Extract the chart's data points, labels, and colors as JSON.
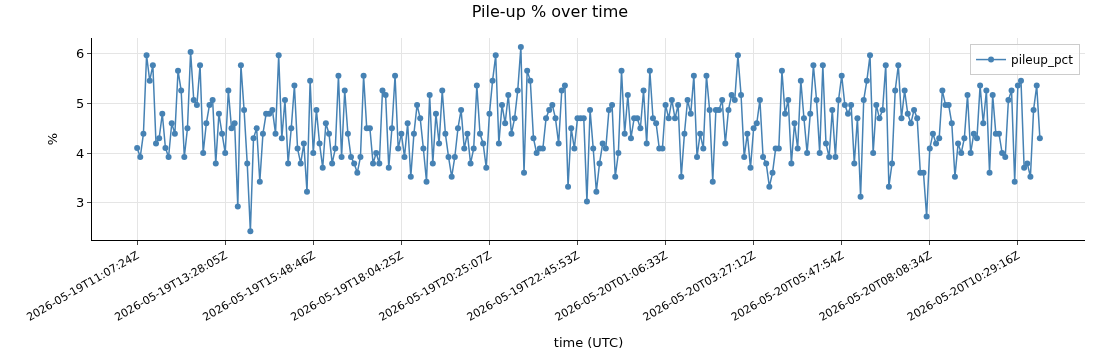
{
  "chart_data": {
    "type": "line",
    "title": "Pile-up % over time",
    "xlabel": "time (UTC)",
    "ylabel": "%",
    "categories": [
      "2026-05-19T11:07:24Z",
      null,
      null,
      null,
      null,
      null,
      null,
      null,
      null,
      null,
      null,
      null,
      null,
      null,
      null,
      null,
      null,
      null,
      null,
      null,
      null,
      null,
      null,
      null,
      null,
      null,
      null,
      null,
      "2026-05-19T13:28:05Z",
      null,
      null,
      null,
      null,
      null,
      null,
      null,
      null,
      null,
      null,
      null,
      null,
      null,
      null,
      null,
      null,
      null,
      null,
      null,
      null,
      null,
      null,
      null,
      null,
      null,
      null,
      null,
      "2026-05-19T15:48:46Z",
      null,
      null,
      null,
      null,
      null,
      null,
      null,
      null,
      null,
      null,
      null,
      null,
      null,
      null,
      null,
      null,
      null,
      null,
      null,
      null,
      null,
      null,
      null,
      null,
      null,
      null,
      null,
      "2026-05-19T18:04:25Z",
      null,
      null,
      null,
      null,
      null,
      null,
      null,
      null,
      null,
      null,
      null,
      null,
      null,
      null,
      null,
      null,
      null,
      null,
      null,
      null,
      null,
      null,
      null,
      null,
      null,
      null,
      null,
      "2026-05-19T20:25:07Z",
      null,
      null,
      null,
      null,
      null,
      null,
      null,
      null,
      null,
      null,
      null,
      null,
      null,
      null,
      null,
      null,
      null,
      null,
      null,
      null,
      null,
      null,
      null,
      null,
      null,
      null,
      null,
      "2026-05-19T22:45:53Z",
      null,
      null,
      null,
      null,
      null,
      null,
      null,
      null,
      null,
      null,
      null,
      null,
      null,
      null,
      null,
      null,
      null,
      null,
      null,
      null,
      null,
      null,
      null,
      null,
      null,
      null,
      null,
      "2026-05-20T01:06:33Z",
      null,
      null,
      null,
      null,
      null,
      null,
      null,
      null,
      null,
      null,
      null,
      null,
      null,
      null,
      null,
      null,
      null,
      null,
      null,
      null,
      null,
      null,
      null,
      null,
      null,
      null,
      null,
      "2026-05-20T03:27:12Z",
      null,
      null,
      null,
      null,
      null,
      null,
      null,
      null,
      null,
      null,
      null,
      null,
      null,
      null,
      null,
      null,
      null,
      null,
      null,
      null,
      null,
      null,
      null,
      null,
      null,
      null,
      null,
      "2026-05-20T05:47:54Z",
      null,
      null,
      null,
      null,
      null,
      null,
      null,
      null,
      null,
      null,
      null,
      null,
      null,
      null,
      null,
      null,
      null,
      null,
      null,
      null,
      null,
      null,
      null,
      null,
      null,
      null,
      null,
      "2026-05-20T08:08:34Z",
      null,
      null,
      null,
      null,
      null,
      null,
      null,
      null,
      null,
      null,
      null,
      null,
      null,
      null,
      null,
      null,
      null,
      null,
      null,
      null,
      null,
      null,
      null,
      null,
      null,
      null,
      null,
      "2026-05-20T10:29:16Z",
      null,
      null,
      null,
      null,
      null,
      null,
      null
    ],
    "series": [
      {
        "name": "pileup_pct",
        "color": "#4682b4",
        "values": [
          4.1,
          3.92,
          4.39,
          5.97,
          5.46,
          5.77,
          4.19,
          4.3,
          4.79,
          4.1,
          3.92,
          4.6,
          4.39,
          5.66,
          5.26,
          3.92,
          4.5,
          6.04,
          5.07,
          4.97,
          5.77,
          4.0,
          4.6,
          4.97,
          5.07,
          3.79,
          4.79,
          4.39,
          4.0,
          5.26,
          4.5,
          4.6,
          2.92,
          5.77,
          4.87,
          3.79,
          2.42,
          4.3,
          4.5,
          3.42,
          4.39,
          4.79,
          4.79,
          4.87,
          4.39,
          5.97,
          4.3,
          5.07,
          3.79,
          4.5,
          5.36,
          4.09,
          3.79,
          4.19,
          3.22,
          5.46,
          4.0,
          4.87,
          4.19,
          3.7,
          4.6,
          4.39,
          3.79,
          4.09,
          5.56,
          3.92,
          5.26,
          4.39,
          3.92,
          3.79,
          3.6,
          3.92,
          5.56,
          4.5,
          4.5,
          3.79,
          4.0,
          3.79,
          5.26,
          5.17,
          3.7,
          4.5,
          5.56,
          4.09,
          4.39,
          3.92,
          4.6,
          3.52,
          4.39,
          4.97,
          4.7,
          4.09,
          3.42,
          5.17,
          3.79,
          4.79,
          4.19,
          5.26,
          4.39,
          3.92,
          3.52,
          3.92,
          4.5,
          4.87,
          4.09,
          4.39,
          3.79,
          4.09,
          5.36,
          4.39,
          4.19,
          3.7,
          4.79,
          5.46,
          5.97,
          4.19,
          4.97,
          4.6,
          5.17,
          4.39,
          4.7,
          5.26,
          6.14,
          3.6,
          5.66,
          5.46,
          4.3,
          4.0,
          4.09,
          4.09,
          4.7,
          4.87,
          4.97,
          4.7,
          4.19,
          5.26,
          5.36,
          3.32,
          4.5,
          4.09,
          4.7,
          4.7,
          4.7,
          3.02,
          4.87,
          4.09,
          3.22,
          3.79,
          4.19,
          4.09,
          4.87,
          4.97,
          3.52,
          4.0,
          5.66,
          4.39,
          5.17,
          4.3,
          4.7,
          4.7,
          4.5,
          5.26,
          4.19,
          5.66,
          4.7,
          4.6,
          4.09,
          4.09,
          4.97,
          4.7,
          5.07,
          4.7,
          4.97,
          3.52,
          4.39,
          5.07,
          4.79,
          5.56,
          3.92,
          4.39,
          4.09,
          5.56,
          4.87,
          3.42,
          4.87,
          4.87,
          5.07,
          4.19,
          4.87,
          5.17,
          5.07,
          5.97,
          5.17,
          3.92,
          4.39,
          3.7,
          4.5,
          4.6,
          5.07,
          3.92,
          3.79,
          3.32,
          3.6,
          4.09,
          4.09,
          5.66,
          4.79,
          5.07,
          3.79,
          4.6,
          4.09,
          5.46,
          4.7,
          4.0,
          4.79,
          5.77,
          5.07,
          4.0,
          5.77,
          4.19,
          3.92,
          4.87,
          3.92,
          5.07,
          5.56,
          4.97,
          4.79,
          4.97,
          3.79,
          4.7,
          3.12,
          5.07,
          5.46,
          5.97,
          4.0,
          4.97,
          4.7,
          4.87,
          5.77,
          3.32,
          3.79,
          5.26,
          5.77,
          4.7,
          5.26,
          4.79,
          4.6,
          4.87,
          4.7,
          3.6,
          3.6,
          2.72,
          4.09,
          4.39,
          4.19,
          4.3,
          5.26,
          4.97,
          4.97,
          4.6,
          3.52,
          4.19,
          4.0,
          4.3,
          5.17,
          4.0,
          4.39,
          4.3,
          5.36,
          4.6,
          5.26,
          3.6,
          5.17,
          4.39,
          4.39,
          4.0,
          3.92,
          5.07,
          5.26,
          3.42,
          5.36,
          5.46,
          3.7,
          3.79,
          3.52,
          4.87,
          5.36,
          4.3
        ]
      }
    ],
    "ylim": [
      2.245,
      6.32
    ],
    "yticks": [
      3,
      4,
      5,
      6
    ],
    "grid": true,
    "legend": "top right",
    "marker": "circle",
    "line_style": "solid"
  }
}
